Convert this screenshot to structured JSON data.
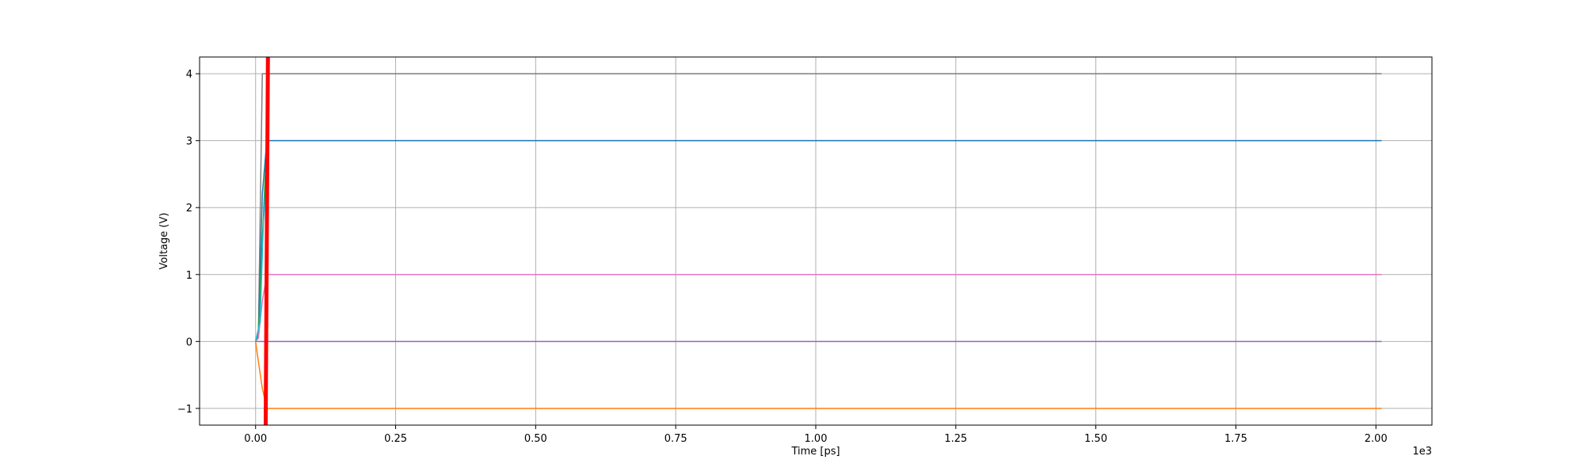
{
  "chart_data": {
    "type": "line",
    "title": "",
    "xlabel": "Time [ps]",
    "ylabel": "Voltage (V)",
    "x_offset_label": "1e3",
    "xlim": [
      -0.1,
      2.1
    ],
    "ylim": [
      -1.25,
      4.25
    ],
    "x_ticks": [
      0.0,
      0.25,
      0.5,
      0.75,
      1.0,
      1.25,
      1.5,
      1.75,
      2.0
    ],
    "x_tick_labels": [
      "0.00",
      "0.25",
      "0.50",
      "0.75",
      "1.00",
      "1.25",
      "1.50",
      "1.75",
      "2.00"
    ],
    "y_ticks": [
      -1,
      0,
      1,
      2,
      3,
      4
    ],
    "y_tick_labels": [
      "−1",
      "0",
      "1",
      "2",
      "3",
      "4"
    ],
    "grid": true,
    "legend": "none",
    "series": [
      {
        "color": "#7f7f7f",
        "width": 1.5,
        "x": [
          0.0,
          0.005,
          0.012,
          0.02,
          2.01
        ],
        "y": [
          0,
          0.1,
          4,
          4,
          4
        ]
      },
      {
        "color": "#1f77b4",
        "width": 1.5,
        "x": [
          0.0,
          0.005,
          0.012,
          0.02,
          2.01
        ],
        "y": [
          0,
          0.1,
          2.2,
          3,
          3
        ]
      },
      {
        "color": "#2ca02c",
        "width": 1.5,
        "x": [
          0.0,
          0.005,
          0.012,
          0.02,
          0.022
        ],
        "y": [
          0,
          0.1,
          1.5,
          3.0,
          3.0
        ]
      },
      {
        "color": "#e377c2",
        "width": 1.5,
        "x": [
          0.0,
          0.005,
          0.012,
          0.02,
          2.01
        ],
        "y": [
          0,
          0.05,
          0.6,
          1,
          1
        ]
      },
      {
        "color": "#9467bd",
        "width": 1.5,
        "x": [
          0.0,
          0.02,
          2.01
        ],
        "y": [
          0,
          0,
          0
        ]
      },
      {
        "color": "#ff7f0e",
        "width": 1.5,
        "x": [
          0.0,
          0.005,
          0.012,
          0.02,
          2.01
        ],
        "y": [
          0,
          -0.3,
          -0.7,
          -1,
          -1
        ]
      },
      {
        "color": "#17becf",
        "width": 1.5,
        "x": [
          0.0,
          0.008,
          0.014,
          0.02
        ],
        "y": [
          0,
          0.3,
          1.8,
          2.5
        ]
      },
      {
        "color": "#ff0000",
        "width": 5,
        "x": [
          0.018,
          0.02,
          0.022
        ],
        "y": [
          -1.25,
          1.5,
          4.25
        ]
      }
    ]
  }
}
